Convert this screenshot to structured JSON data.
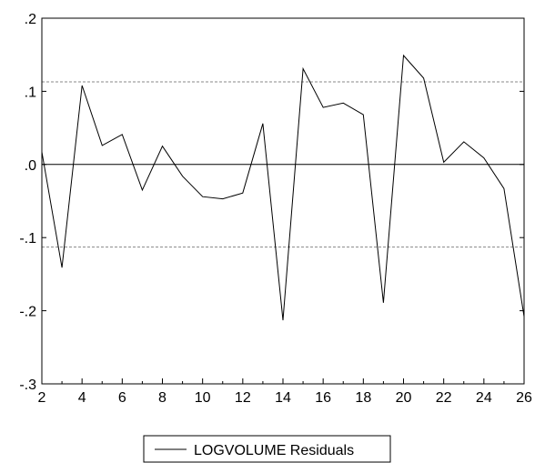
{
  "chart_data": {
    "type": "line",
    "title": "",
    "xlabel": "",
    "ylabel": "",
    "xlim": [
      2,
      26
    ],
    "ylim": [
      -0.3,
      0.2
    ],
    "x_ticks": [
      2,
      4,
      6,
      8,
      10,
      12,
      14,
      16,
      18,
      20,
      22,
      24,
      26
    ],
    "x_tick_labels": [
      "2",
      "4",
      "6",
      "8",
      "10",
      "12",
      "14",
      "16",
      "18",
      "20",
      "22",
      "24",
      "26"
    ],
    "y_ticks": [
      -0.3,
      -0.2,
      -0.1,
      0.0,
      0.1,
      0.2
    ],
    "y_tick_labels": [
      "-.3",
      "-.2",
      "-.1",
      ".0",
      ".1",
      ".2"
    ],
    "series": [
      {
        "name": "LOGVOLUME Residuals",
        "color": "#000000",
        "x": [
          2,
          3,
          4,
          5,
          6,
          7,
          8,
          9,
          10,
          11,
          12,
          13,
          14,
          15,
          16,
          17,
          18,
          19,
          20,
          21,
          22,
          23,
          24,
          25,
          26
        ],
        "y": [
          0.017,
          -0.141,
          0.108,
          0.026,
          0.041,
          -0.035,
          0.025,
          -0.016,
          -0.044,
          -0.047,
          -0.039,
          0.056,
          -0.213,
          0.131,
          0.078,
          0.084,
          0.068,
          -0.189,
          0.149,
          0.118,
          0.003,
          0.031,
          0.009,
          -0.033,
          -0.208
        ]
      }
    ],
    "reference_lines": [
      {
        "style": "solid",
        "y": 0.0,
        "color": "#000000"
      },
      {
        "style": "dashed",
        "y": 0.113,
        "color": "#888888"
      },
      {
        "style": "dashed",
        "y": -0.113,
        "color": "#888888"
      }
    ],
    "grid": false,
    "legend": {
      "position": "bottom-center",
      "entries": [
        "LOGVOLUME Residuals"
      ]
    }
  }
}
